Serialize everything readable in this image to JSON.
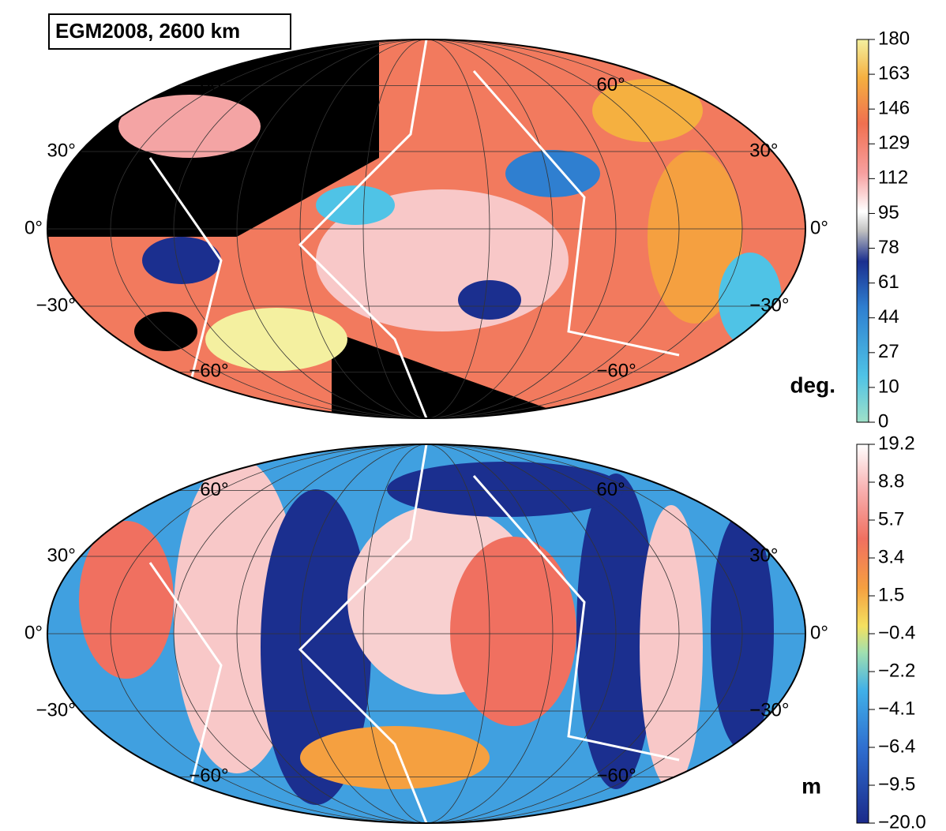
{
  "title": "EGM2008, 2600 km",
  "maps": [
    {
      "lat_labels": [
        "60°",
        "30°",
        "0°",
        "−30°",
        "−60°"
      ],
      "colorbar": {
        "unit": "deg.",
        "labels": [
          "180",
          "163",
          "146",
          "129",
          "112",
          "95",
          "78",
          "61",
          "44",
          "27",
          "10",
          "0"
        ]
      }
    },
    {
      "lat_labels": [
        "60°",
        "30°",
        "0°",
        "−30°",
        "−60°"
      ],
      "colorbar": {
        "unit": "m",
        "labels": [
          "19.2",
          "8.8",
          "5.7",
          "3.4",
          "1.5",
          "−0.4",
          "−2.2",
          "−4.1",
          "−6.4",
          "−9.5",
          "−20.0"
        ]
      }
    }
  ]
}
